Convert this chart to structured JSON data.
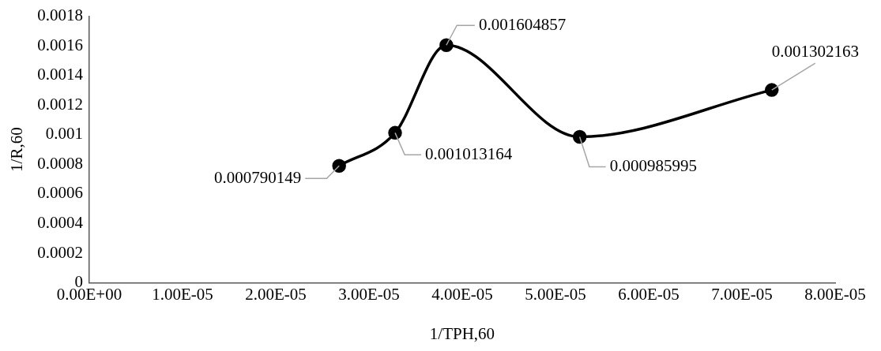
{
  "chart_data": {
    "type": "line",
    "xlabel": "1/TPH,60",
    "ylabel": "1/R,60",
    "x": [
      2.68e-05,
      3.28e-05,
      3.83e-05,
      5.26e-05,
      7.32e-05
    ],
    "series": [
      {
        "color": "#000000",
        "values": [
          0.000790149,
          0.001013164,
          0.001604857,
          0.000985995,
          0.001302163
        ]
      }
    ],
    "xlim": [
      0,
      8e-05
    ],
    "xticks": [
      {
        "value": 0,
        "label": "0.00E+00"
      },
      {
        "value": 1e-05,
        "label": "1.00E-05"
      },
      {
        "value": 2e-05,
        "label": "2.00E-05"
      },
      {
        "value": 3e-05,
        "label": "3.00E-05"
      },
      {
        "value": 4e-05,
        "label": "4.00E-05"
      },
      {
        "value": 5e-05,
        "label": "5.00E-05"
      },
      {
        "value": 6e-05,
        "label": "6.00E-05"
      },
      {
        "value": 7e-05,
        "label": "7.00E-05"
      },
      {
        "value": 8e-05,
        "label": "8.00E-05"
      }
    ],
    "ylim": [
      0,
      0.0018
    ],
    "yticks": [
      0,
      0.0002,
      0.0004,
      0.0006,
      0.0008,
      0.001,
      0.0012,
      0.0014,
      0.0016,
      0.0018
    ],
    "grid": false,
    "legend": false,
    "marker": "circle",
    "line_style": "solid",
    "data_labels": true
  }
}
